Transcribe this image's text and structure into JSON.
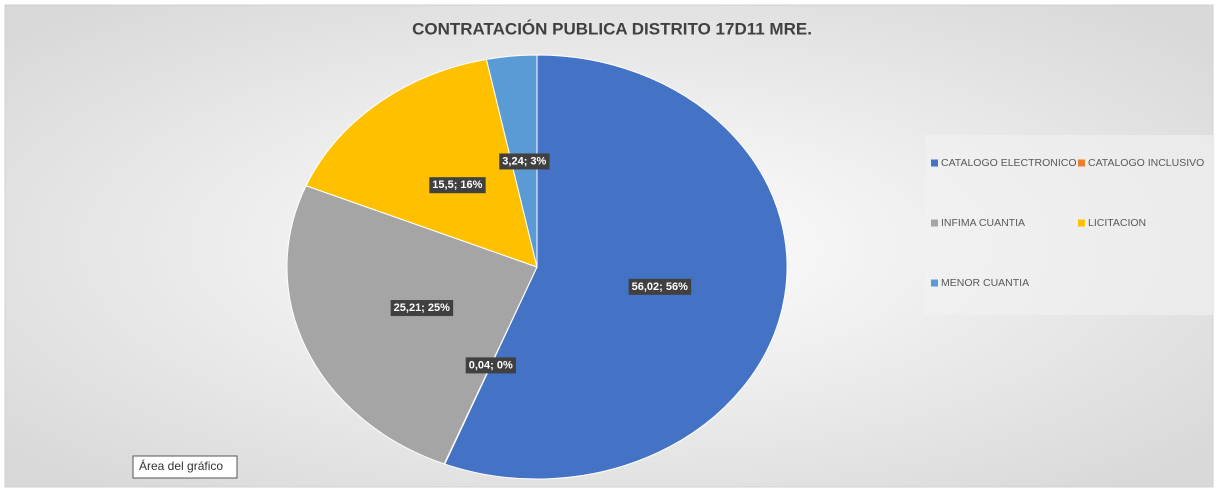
{
  "chart_data": {
    "type": "pie",
    "title": "CONTRATACIÓN PUBLICA DISTRITO 17D11 MRE.",
    "categories": [
      "CATALOGO ELECTRONICO",
      "CATALOGO INCLUSIVO",
      "INFIMA CUANTIA",
      "LICITACION",
      "MENOR CUANTIA"
    ],
    "values": [
      56.02,
      0.04,
      25.21,
      15.5,
      3.24
    ],
    "value_labels": [
      "56,02; 56%",
      "0,04; 0%",
      "25,21; 25%",
      "15,5; 16%",
      "3,24; 3%"
    ],
    "colors": [
      "#4472c4",
      "#ed7d31",
      "#a5a5a5",
      "#ffc000",
      "#5b9bd5"
    ],
    "legend": "right",
    "tooltip": "Área del gráfico"
  }
}
